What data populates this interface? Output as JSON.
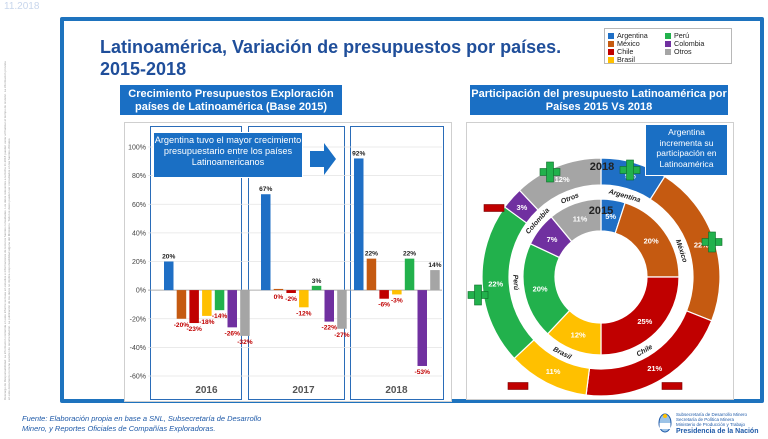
{
  "corner_tag": "11.2018",
  "disclaimer": "Descargo de Responsabilidad: La información contenida en este informe se basa en estudios e informaciones de terceros fuentes consultadas. Los datos relevantes a la fecha 11.2018 pueden variar al finalizar el tiempo de revisión. La información provista en este documento no tiene carácter de recomendación. La publicación de los datos no implica responsabilidad alguna del Ministerio. Todo los datos pueden ser consultados en las fuentes oficiales.",
  "title_line1": "Latinoamérica, Variación de presupuestos por países.",
  "title_line2": "2015-2018",
  "legend": [
    {
      "label": "Argentina",
      "color": "#1f6fc5"
    },
    {
      "label": "México",
      "color": "#c55a11"
    },
    {
      "label": "Chile",
      "color": "#c00000"
    },
    {
      "label": "Brasil",
      "color": "#ffc000"
    },
    {
      "label": "Perú",
      "color": "#22b14c"
    },
    {
      "label": "Colombia",
      "color": "#7030a0"
    },
    {
      "label": "Otros",
      "color": "#a5a5a5"
    }
  ],
  "left_header": "Crecimiento Presupuestos  Exploración países de  Latinoamérica (Base 2015)",
  "right_header": "Participación del presupuesto Latinoamérica por Países 2015 Vs 2018",
  "left_callout": "Argentina tuvo el mayor crecimiento presupuestario entre los países Latinoamericanos",
  "right_callout": "Argentina incrementa su participación en Latinoamérica",
  "footer_line1": "Fuente: Elaboración propia en base a SNL, Subsecretaría de Desarrollo",
  "footer_line2": "Minero, y  Reportes Oficiales de Compañías Exploradoras.",
  "org": {
    "line1": "Subsecretaría de Desarrollo Minero",
    "line2": "Secretaría de Política Minera",
    "line3": "Ministerio de Producción y Trabajo",
    "line4": "Presidencia de la Nación"
  },
  "chart_data": [
    {
      "type": "bar",
      "title": "Crecimiento Presupuestos Exploración países de Latinoamérica (Base 2015)",
      "categories": [
        "2016",
        "2017",
        "2018"
      ],
      "ylim": [
        -60,
        100
      ],
      "yticks": [
        100,
        80,
        60,
        40,
        20,
        0,
        -20,
        -40,
        -60
      ],
      "series": [
        {
          "name": "Argentina",
          "values": [
            20,
            67,
            92
          ],
          "labels": [
            "20%",
            "67%",
            "92%"
          ]
        },
        {
          "name": "México",
          "values": [
            -20,
            0,
            22
          ],
          "labels": [
            "-20%",
            "0%",
            "22%"
          ]
        },
        {
          "name": "Chile",
          "values": [
            -23,
            -2,
            -6
          ],
          "labels": [
            "-23%",
            "-2%",
            "-6%"
          ]
        },
        {
          "name": "Brasil",
          "values": [
            -18,
            -12,
            -3
          ],
          "labels": [
            "-18%",
            "-12%",
            "-3%"
          ]
        },
        {
          "name": "Perú",
          "values": [
            -14,
            3,
            22
          ],
          "labels": [
            "-14%",
            "3%",
            "22%"
          ]
        },
        {
          "name": "Colombia",
          "values": [
            -26,
            -22,
            -53
          ],
          "labels": [
            "-26%",
            "-22%",
            "-53%"
          ]
        },
        {
          "name": "Otros",
          "values": [
            -32,
            -27,
            14
          ],
          "labels": [
            "-32%",
            "-27%",
            "14%"
          ]
        }
      ]
    },
    {
      "type": "pie",
      "title": "Participación del presupuesto Latinoamérica por Países 2015 Vs 2018",
      "rings": [
        {
          "name": "2015",
          "slices": [
            {
              "country": "Argentina",
              "value": 5,
              "label": "5%"
            },
            {
              "country": "México",
              "value": 20,
              "label": "20%"
            },
            {
              "country": "Chile",
              "value": 25,
              "label": "25%"
            },
            {
              "country": "Brasil",
              "value": 12,
              "label": "12%"
            },
            {
              "country": "Perú",
              "value": 20,
              "label": "20%"
            },
            {
              "country": "Colombia",
              "value": 7,
              "label": "7%"
            },
            {
              "country": "Otros",
              "value": 11,
              "label": "11%"
            }
          ]
        },
        {
          "name": "2018",
          "slices": [
            {
              "country": "Argentina",
              "value": 9,
              "label": "9%"
            },
            {
              "country": "México",
              "value": 22,
              "label": "22%"
            },
            {
              "country": "Chile",
              "value": 21,
              "label": "21%"
            },
            {
              "country": "Brasil",
              "value": 11,
              "label": "11%"
            },
            {
              "country": "Perú",
              "value": 22,
              "label": "22%"
            },
            {
              "country": "Colombia",
              "value": 3,
              "label": "3%"
            },
            {
              "country": "Otros",
              "value": 12,
              "label": "12%"
            }
          ]
        }
      ],
      "change_markers": [
        {
          "country": "Argentina",
          "sign": "+"
        },
        {
          "country": "México",
          "sign": "+"
        },
        {
          "country": "Chile",
          "sign": "-"
        },
        {
          "country": "Brasil",
          "sign": "-"
        },
        {
          "country": "Perú",
          "sign": "+"
        },
        {
          "country": "Colombia",
          "sign": "-"
        },
        {
          "country": "Otros",
          "sign": "+"
        }
      ],
      "marker_colors": {
        "plus": "#22b14c",
        "minus": "#c00000"
      }
    }
  ]
}
